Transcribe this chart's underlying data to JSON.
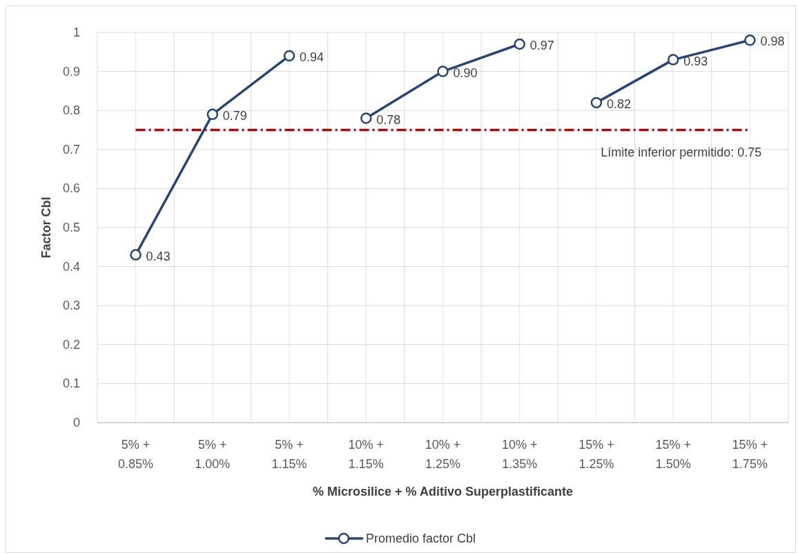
{
  "chart_data": {
    "type": "line",
    "xlabel": "% Microsilice + % Aditivo Superplastificante",
    "ylabel": "Factor Cbl",
    "categories": [
      "5% +\n0.85%",
      "5% +\n1.00%",
      "5% +\n1.15%",
      "10% +\n1.15%",
      "10% +\n1.25%",
      "10% +\n1.35%",
      "15% +\n1.25%",
      "15% +\n1.50%",
      "15% +\n1.75%"
    ],
    "series": [
      {
        "name": "Promedio factor Cbl",
        "color": "#264478",
        "values": [
          0.43,
          0.79,
          0.94,
          null,
          null,
          null,
          null,
          null,
          null
        ],
        "value_labels": [
          "0.43",
          "0.79",
          "0.94",
          null,
          null,
          null,
          null,
          null,
          null
        ]
      },
      {
        "color": "#264478",
        "values": [
          null,
          null,
          null,
          0.78,
          0.9,
          0.97,
          null,
          null,
          null
        ],
        "value_labels": [
          null,
          null,
          null,
          "0.78",
          "0.90",
          "0.97",
          null,
          null,
          null
        ]
      },
      {
        "color": "#264478",
        "values": [
          null,
          null,
          null,
          null,
          null,
          null,
          0.82,
          0.93,
          0.98
        ],
        "value_labels": [
          null,
          null,
          null,
          null,
          null,
          null,
          "0.82",
          "0.93",
          "0.98"
        ]
      }
    ],
    "ylim": [
      0,
      1
    ],
    "yticks": [
      0,
      0.1,
      0.2,
      0.3,
      0.4,
      0.5,
      0.6,
      0.7,
      0.8,
      0.9,
      1
    ],
    "grid": true,
    "legend": "bottom",
    "marker": "circle",
    "line_style": "solid",
    "ref_lines": [
      {
        "axis": "y",
        "value": 0.75,
        "label": "Límite inferior permitido: 0.75",
        "color": "#c00000",
        "line_style": "dashed"
      }
    ]
  }
}
